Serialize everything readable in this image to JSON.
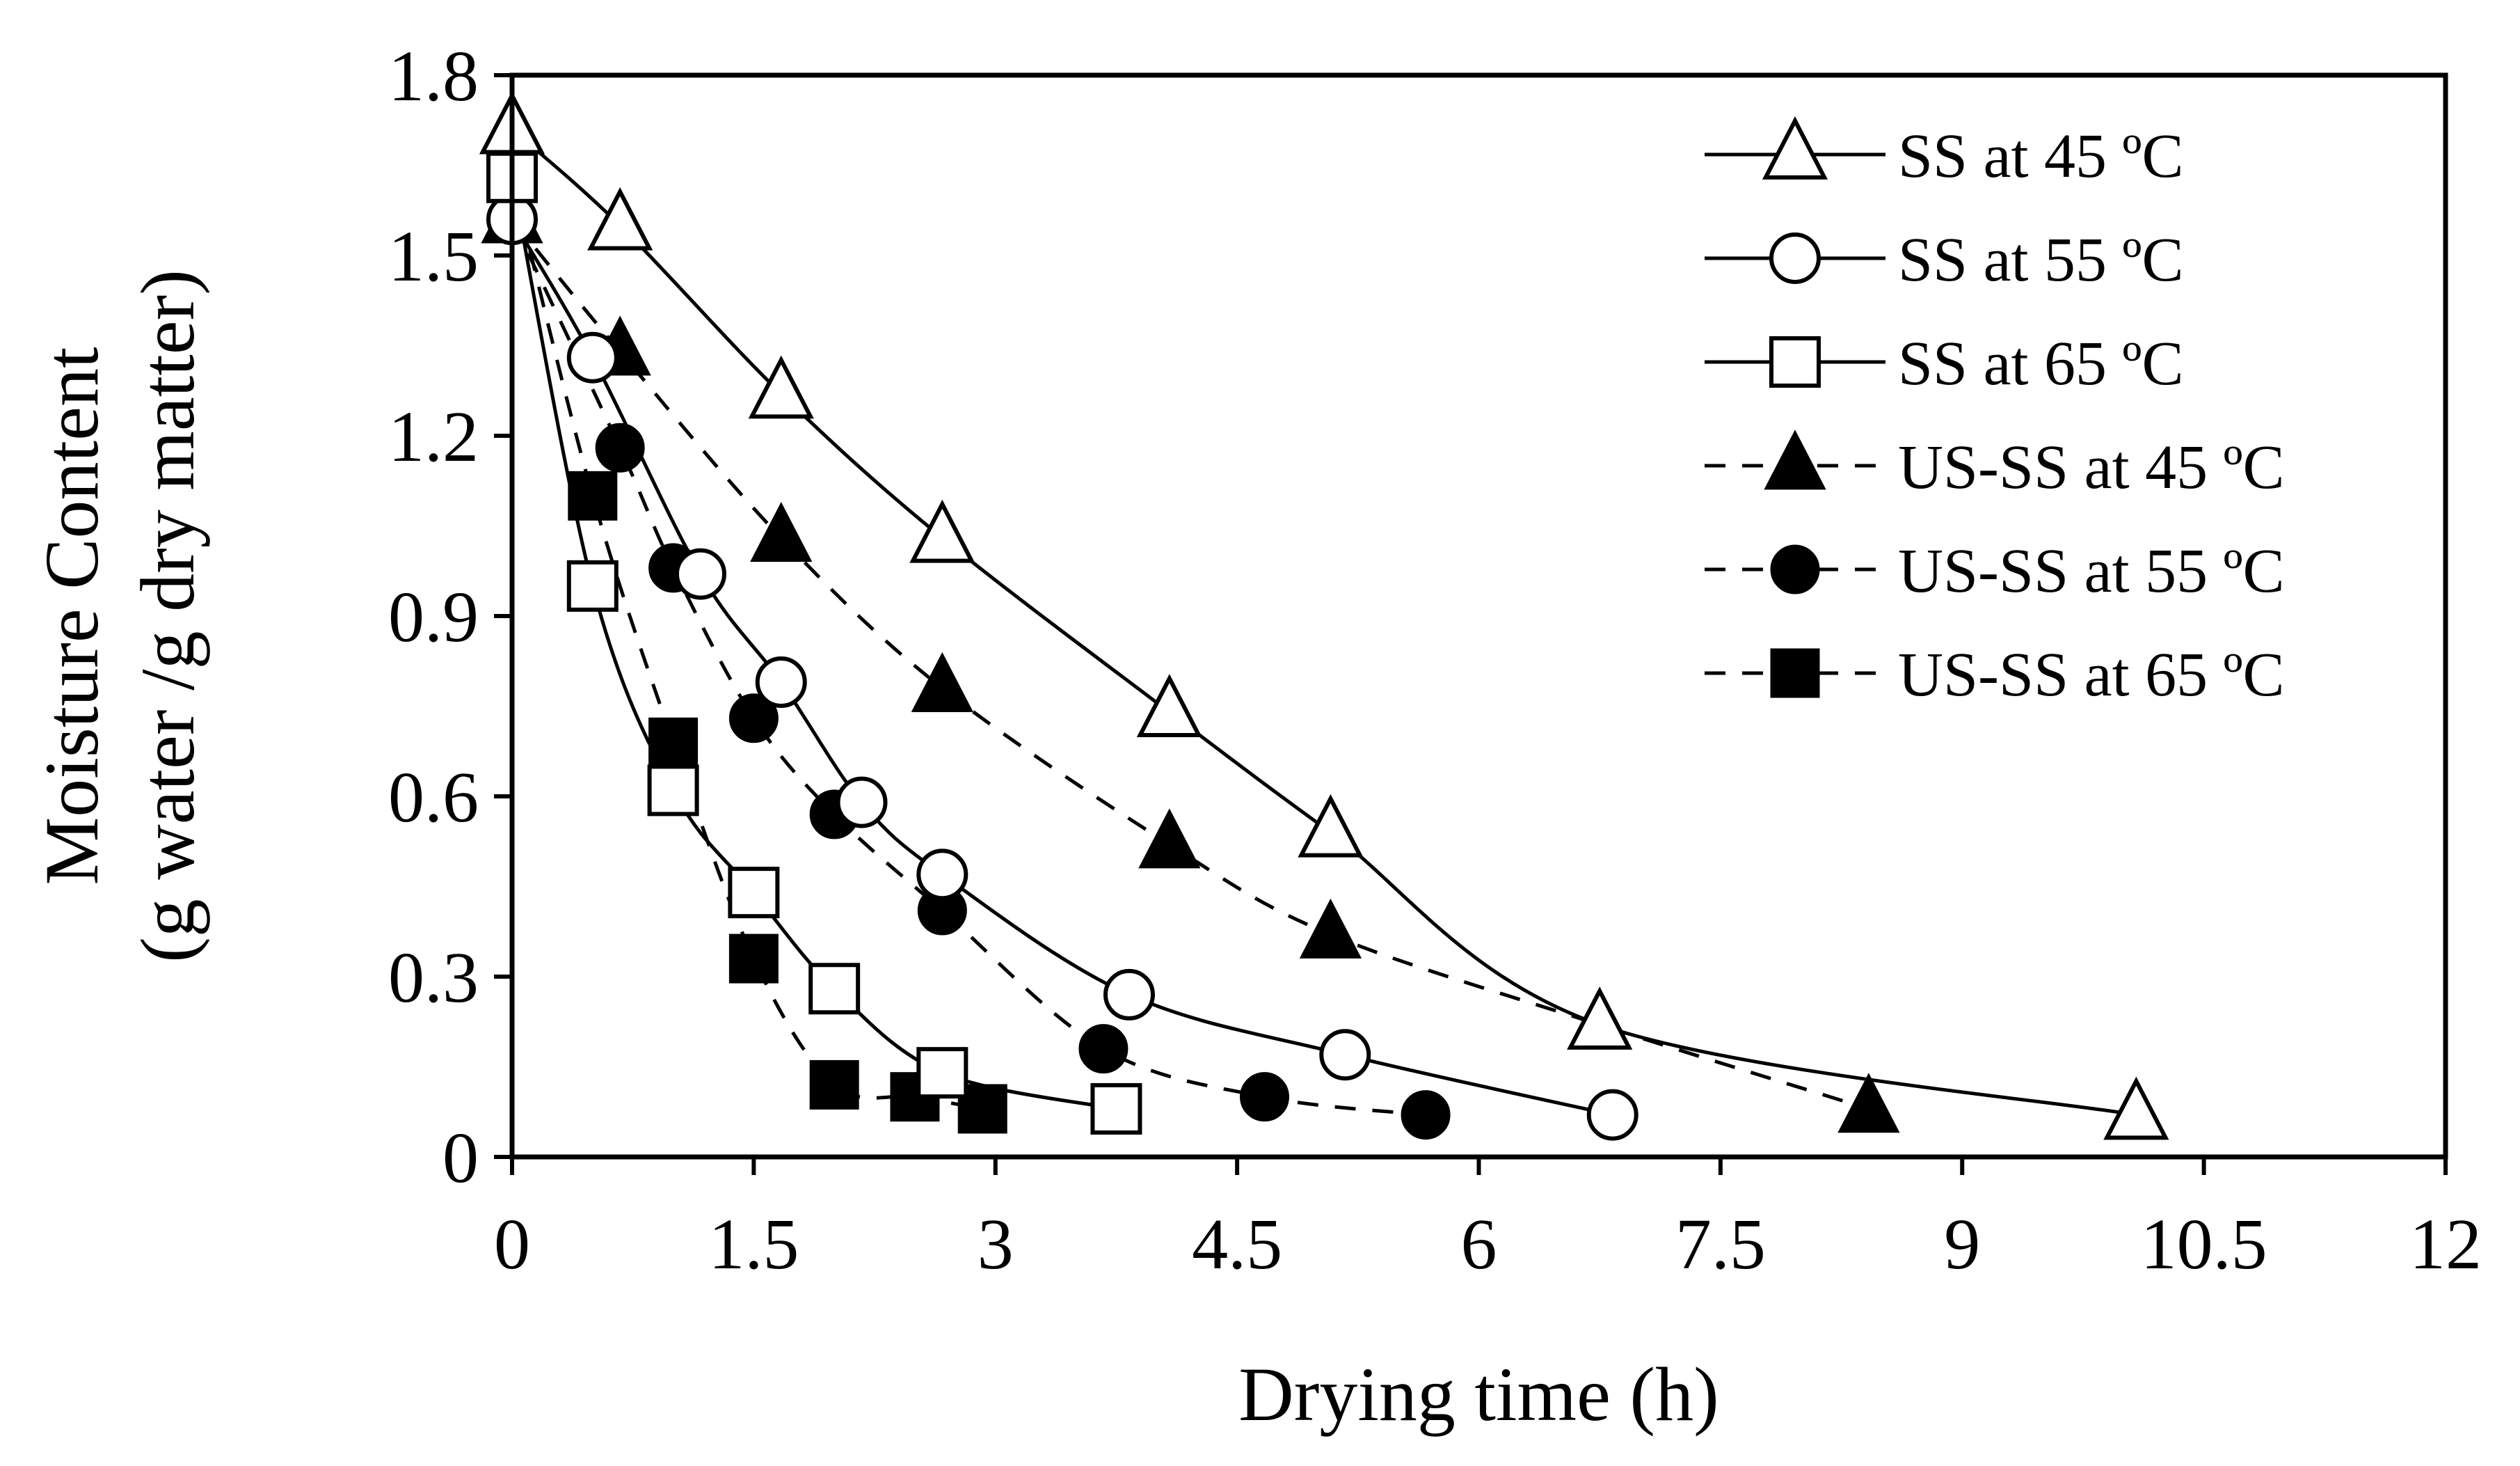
{
  "chart_data": {
    "type": "line",
    "title": "",
    "xlabel": "Drying time (h)",
    "ylabel_line1": "Moisture Content",
    "ylabel_line2": "(g water /g dry matter)",
    "xlim": [
      0,
      12
    ],
    "ylim": [
      0,
      1.8
    ],
    "x_ticks": [
      0,
      1.5,
      3,
      4.5,
      6,
      7.5,
      9,
      10.5,
      12
    ],
    "x_tick_labels": [
      "0",
      "1.5",
      "3",
      "4.5",
      "6",
      "7.5",
      "9",
      "10.5",
      "12"
    ],
    "y_ticks": [
      0,
      0.3,
      0.6,
      0.9,
      1.2,
      1.5,
      1.8
    ],
    "y_tick_labels": [
      "0",
      "0.3",
      "0.6",
      "0.9",
      "1.2",
      "1.5",
      "1.8"
    ],
    "grid": false,
    "legend_position": "top-right",
    "series": [
      {
        "name": "SS at 45 ºC",
        "marker": "triangle",
        "filled": false,
        "dashed": false,
        "x": [
          0,
          0.67,
          1.67,
          2.67,
          4.08,
          5.08,
          6.75,
          10.08
        ],
        "y": [
          1.71,
          1.55,
          1.27,
          1.03,
          0.74,
          0.54,
          0.22,
          0.07
        ]
      },
      {
        "name": "SS at 55 ºC",
        "marker": "circle",
        "filled": false,
        "dashed": false,
        "x": [
          0,
          0.5,
          1.17,
          1.67,
          2.17,
          2.67,
          3.83,
          5.17,
          6.83
        ],
        "y": [
          1.56,
          1.33,
          0.97,
          0.79,
          0.59,
          0.47,
          0.27,
          0.17,
          0.07
        ]
      },
      {
        "name": "SS at 65 ºC",
        "marker": "square",
        "filled": false,
        "dashed": false,
        "x": [
          0,
          0.5,
          1.0,
          1.5,
          2.0,
          2.67,
          3.75
        ],
        "y": [
          1.63,
          0.95,
          0.61,
          0.44,
          0.28,
          0.14,
          0.08
        ]
      },
      {
        "name": "US-SS at 45 ºC",
        "marker": "triangle",
        "filled": true,
        "dashed": true,
        "x": [
          0,
          0.67,
          1.67,
          2.67,
          4.08,
          5.08,
          6.75,
          8.42
        ],
        "y": [
          1.56,
          1.34,
          1.03,
          0.78,
          0.52,
          0.37,
          0.22,
          0.08
        ]
      },
      {
        "name": "US-SS at 55 ºC",
        "marker": "circle",
        "filled": true,
        "dashed": true,
        "x": [
          0,
          0.67,
          1.0,
          1.5,
          2.0,
          2.67,
          3.67,
          4.67,
          5.67
        ],
        "y": [
          1.56,
          1.18,
          0.98,
          0.73,
          0.57,
          0.41,
          0.18,
          0.1,
          0.07
        ]
      },
      {
        "name": "US-SS at 65 ºC",
        "marker": "square",
        "filled": true,
        "dashed": true,
        "x": [
          0,
          0.5,
          1.0,
          1.5,
          2.0,
          2.5,
          2.92
        ],
        "y": [
          1.63,
          1.1,
          0.69,
          0.33,
          0.12,
          0.1,
          0.08
        ]
      }
    ]
  }
}
